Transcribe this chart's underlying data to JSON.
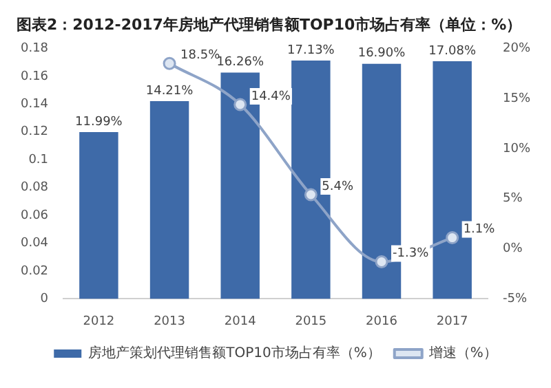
{
  "chart_data": {
    "type": "bar",
    "title": "图表2：2012-2017年房地产代理销售额TOP10市场占有率（单位：%）",
    "categories": [
      "2012",
      "2013",
      "2014",
      "2015",
      "2016",
      "2017"
    ],
    "series": [
      {
        "name": "房地产策划代理销售额TOP10市场占有率（%）",
        "color": "#3e6aa8",
        "values": [
          0.1199,
          0.1421,
          0.1626,
          0.1713,
          0.169,
          0.1708
        ],
        "value_labels": [
          "11.99%",
          "14.21%",
          "16.26%",
          "17.13%",
          "16.90%",
          "17.08%"
        ]
      },
      {
        "name": "增速（%）",
        "type": "line",
        "axis": "y2",
        "color": "#8ea4c8",
        "marker": "circle",
        "values": [
          null,
          18.5,
          14.4,
          5.4,
          -1.3,
          1.1
        ],
        "value_labels": [
          null,
          "18.5%",
          "14.4%",
          "5.4%",
          "-1.3%",
          "1.1%"
        ]
      }
    ],
    "ylim": [
      0,
      0.18
    ],
    "yticks": [
      0,
      0.02,
      0.04,
      0.06,
      0.08,
      0.1,
      0.12,
      0.14,
      0.16,
      0.18
    ],
    "y2lim": [
      -5,
      20
    ],
    "y2ticks": [
      {
        "value": -5,
        "label": "-5%"
      },
      {
        "value": 0,
        "label": "0%"
      },
      {
        "value": 5,
        "label": "5%"
      },
      {
        "value": 10,
        "label": "10%"
      },
      {
        "value": 15,
        "label": "15%"
      },
      {
        "value": 20,
        "label": "20%"
      }
    ],
    "grid": false,
    "legend": "bottom"
  }
}
